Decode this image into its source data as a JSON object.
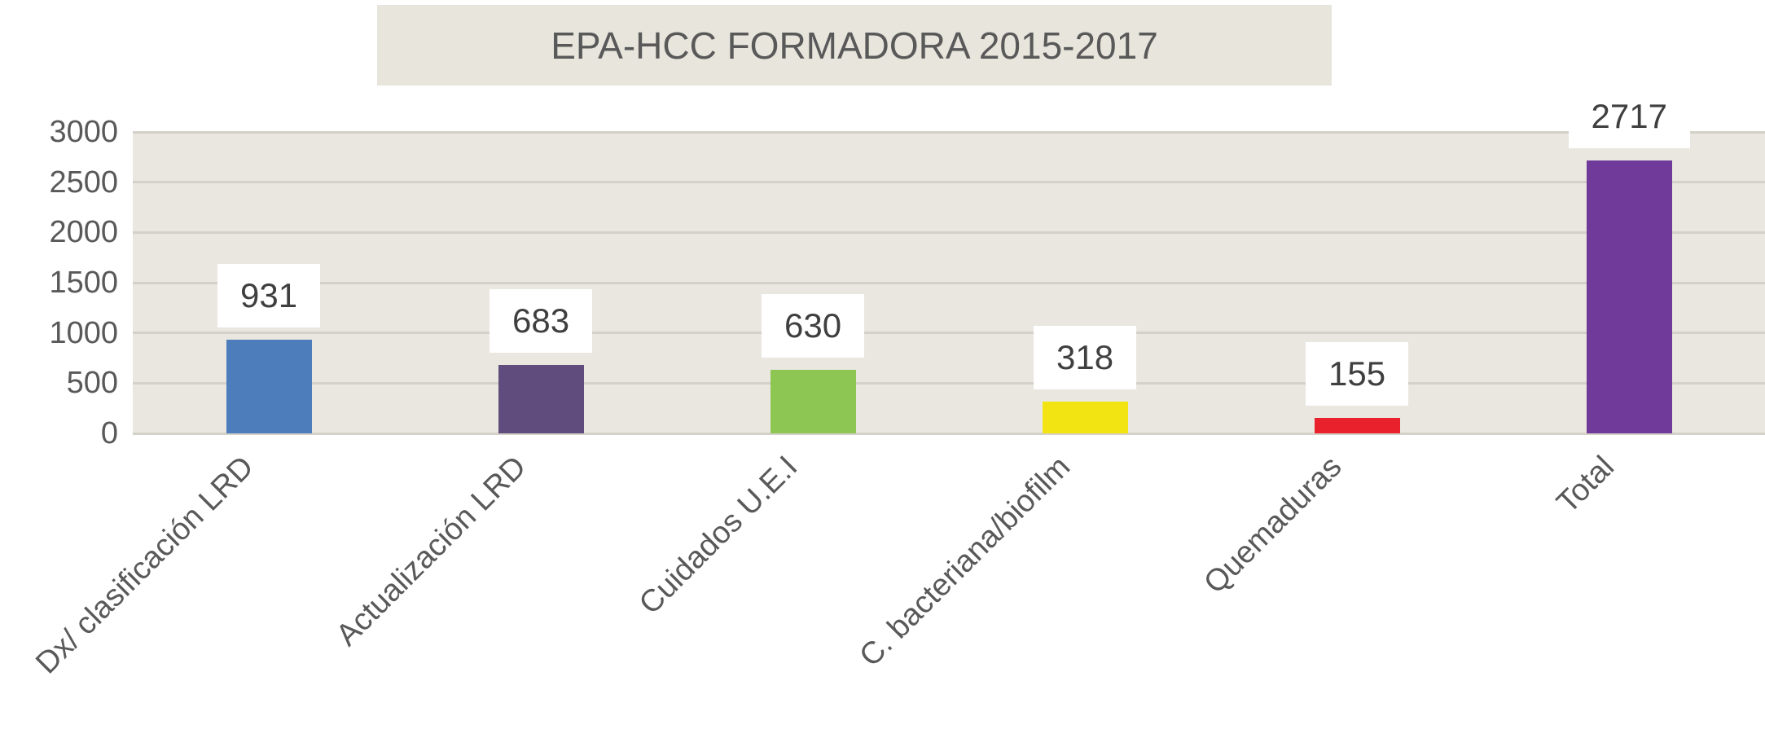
{
  "title": "EPA-HCC FORMADORA 2015-2017",
  "colors": {
    "plot_background": "#e9e7df",
    "gridline": "#d3d1c8",
    "title_background": "#e7e5dc",
    "axis_text": "#595959",
    "data_label_text": "#3f3f3f",
    "data_label_background": "#ffffff"
  },
  "chart_data": {
    "type": "bar",
    "title": "EPA-HCC FORMADORA 2015-2017",
    "categories": [
      "Dx/ clasificación LRD",
      "Actualización LRD",
      "Cuidados U.E.I",
      "C. bacteriana/biofilm",
      "Quemaduras",
      "Total"
    ],
    "values": [
      931,
      683,
      630,
      318,
      155,
      2717
    ],
    "data_labels": [
      "931",
      "683",
      "630",
      "318",
      "155",
      "2717"
    ],
    "bar_colors": [
      "#4e7dbb",
      "#604d7d",
      "#8ec654",
      "#f2e413",
      "#e8212d",
      "#703a9b"
    ],
    "xlabel": "",
    "ylabel": "",
    "ylim": [
      0,
      3000
    ],
    "yticks": [
      0,
      500,
      1000,
      1500,
      2000,
      2500,
      3000
    ],
    "grid": true,
    "legend": false,
    "x_label_rotation_deg": 45
  }
}
